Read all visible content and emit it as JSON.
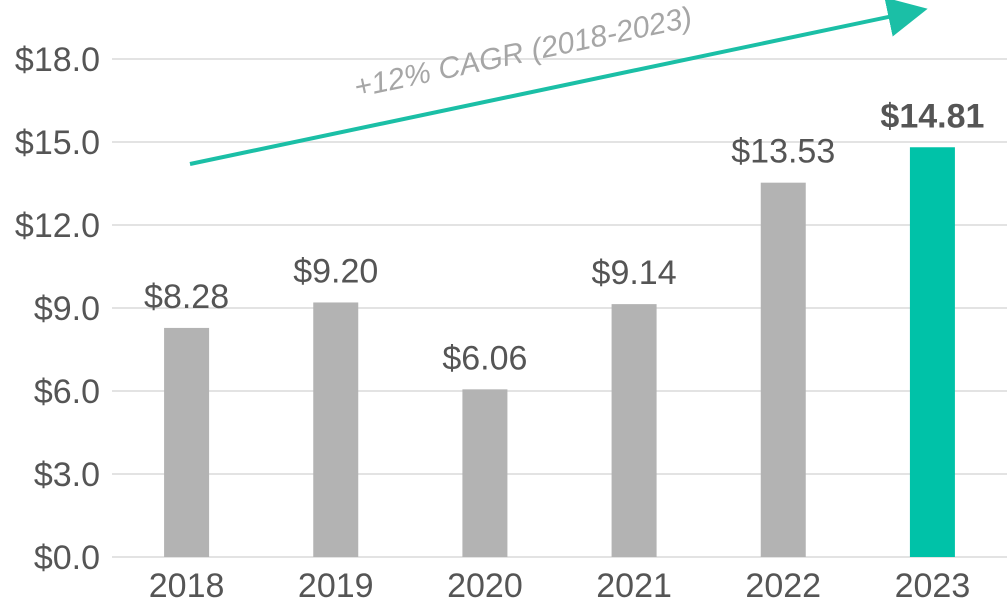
{
  "chart_data": {
    "type": "bar",
    "title": "",
    "xlabel": "",
    "ylabel": "",
    "categories": [
      "2018",
      "2019",
      "2020",
      "2021",
      "2022",
      "2023"
    ],
    "values": [
      8.28,
      9.2,
      6.06,
      9.14,
      13.53,
      14.81
    ],
    "value_labels": [
      "$8.28",
      "$9.20",
      "$6.06",
      "$9.14",
      "$13.53",
      "$14.81"
    ],
    "highlight_index": 5,
    "ylim": [
      0,
      18
    ],
    "yticks": [
      0,
      3,
      6,
      9,
      12,
      15,
      18
    ],
    "ytick_labels": [
      "$0.0",
      "$3.0",
      "$6.0",
      "$9.0",
      "$12.0",
      "$15.0",
      "$18.0"
    ],
    "grid": true,
    "annotation": "+12% CAGR (2018-2023)",
    "colors": {
      "bar": "#b3b3b3",
      "highlight": "#00c2a8",
      "arrow": "#1bbfa6",
      "grid": "#e3e3e3",
      "text": "#555555",
      "annotation": "#a6a6a6"
    }
  }
}
